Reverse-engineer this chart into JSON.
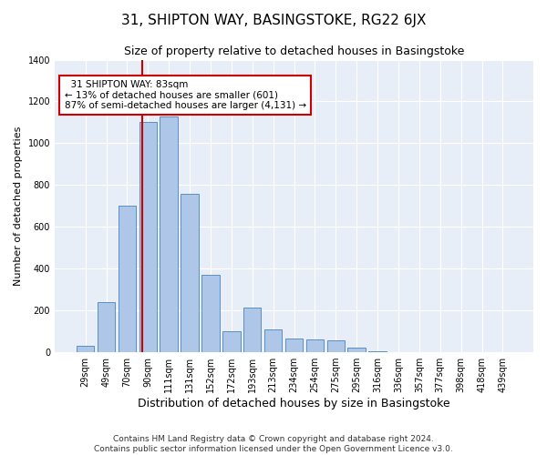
{
  "title": "31, SHIPTON WAY, BASINGSTOKE, RG22 6JX",
  "subtitle": "Size of property relative to detached houses in Basingstoke",
  "xlabel": "Distribution of detached houses by size in Basingstoke",
  "ylabel": "Number of detached properties",
  "categories": [
    "29sqm",
    "49sqm",
    "70sqm",
    "90sqm",
    "111sqm",
    "131sqm",
    "152sqm",
    "172sqm",
    "193sqm",
    "213sqm",
    "234sqm",
    "254sqm",
    "275sqm",
    "295sqm",
    "316sqm",
    "336sqm",
    "357sqm",
    "377sqm",
    "398sqm",
    "418sqm",
    "439sqm"
  ],
  "values": [
    30,
    240,
    700,
    1100,
    1130,
    760,
    370,
    100,
    215,
    110,
    65,
    60,
    55,
    20,
    5,
    0,
    0,
    0,
    0,
    0,
    0
  ],
  "bar_color": "#aec6e8",
  "bar_edge_color": "#5a8fc0",
  "background_color": "#e8eef7",
  "vline_color": "#cc0000",
  "annotation_text": "  31 SHIPTON WAY: 83sqm\n← 13% of detached houses are smaller (601)\n87% of semi-detached houses are larger (4,131) →",
  "annotation_box_color": "#ffffff",
  "annotation_box_edge_color": "#cc0000",
  "ylim": [
    0,
    1400
  ],
  "yticks": [
    0,
    200,
    400,
    600,
    800,
    1000,
    1200,
    1400
  ],
  "footnote": "Contains HM Land Registry data © Crown copyright and database right 2024.\nContains public sector information licensed under the Open Government Licence v3.0.",
  "title_fontsize": 11,
  "subtitle_fontsize": 9,
  "xlabel_fontsize": 9,
  "ylabel_fontsize": 8,
  "tick_fontsize": 7,
  "annotation_fontsize": 7.5,
  "footnote_fontsize": 6.5
}
